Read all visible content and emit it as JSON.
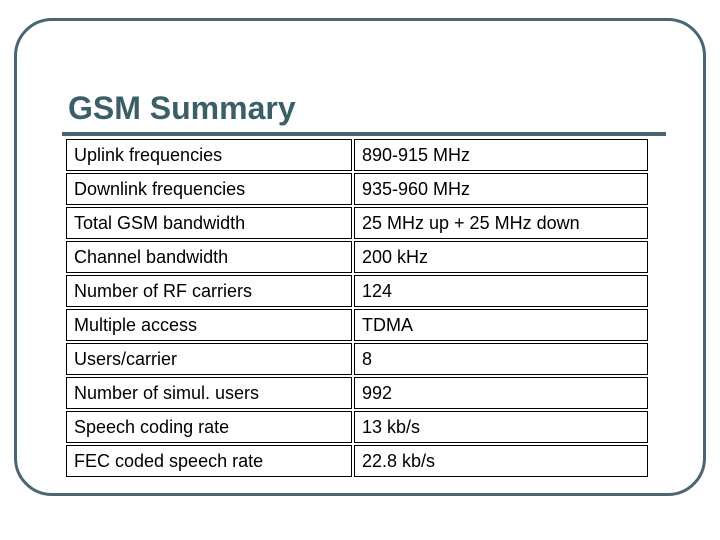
{
  "slide": {
    "title": "GSM Summary",
    "rows": [
      {
        "label": "Uplink frequencies",
        "value": "890-915 MHz"
      },
      {
        "label": "Downlink frequencies",
        "value": "935-960 MHz"
      },
      {
        "label": "Total GSM bandwidth",
        "value": "25 MHz up + 25 MHz down"
      },
      {
        "label": "Channel bandwidth",
        "value": "200 kHz"
      },
      {
        "label": "Number of RF carriers",
        "value": "124"
      },
      {
        "label": "Multiple access",
        "value": "TDMA"
      },
      {
        "label": "Users/carrier",
        "value": "8"
      },
      {
        "label": "Number of simul. users",
        "value": "992"
      },
      {
        "label": "Speech coding rate",
        "value": "13 kb/s"
      },
      {
        "label": "FEC coded speech rate",
        "value": "22.8 kb/s"
      }
    ]
  },
  "colors": {
    "title": "#3b5f68",
    "frame_border": "#4a6670",
    "table_border": "#000000",
    "background": "#ffffff"
  }
}
